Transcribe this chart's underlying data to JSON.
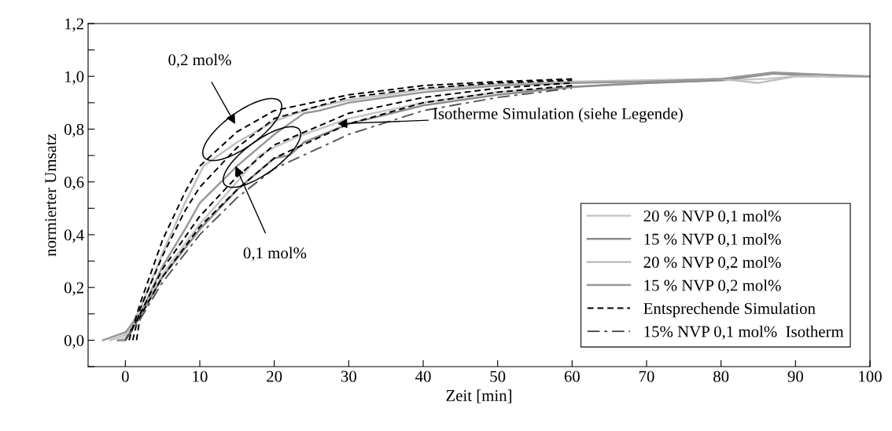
{
  "chart_data": {
    "type": "line",
    "xlabel": "Zeit [min]",
    "ylabel": "normierter Umsatz",
    "xlim": [
      -5,
      100
    ],
    "ylim": [
      -0.1,
      1.2
    ],
    "xticks": [
      0,
      10,
      20,
      30,
      40,
      50,
      60,
      70,
      80,
      90,
      100
    ],
    "yticks": [
      {
        "value": -0.1,
        "label": null
      },
      {
        "value": 0,
        "label": "0,0"
      },
      {
        "value": 0.1,
        "label": null
      },
      {
        "value": 0.2,
        "label": "0,2"
      },
      {
        "value": 0.3,
        "label": null
      },
      {
        "value": 0.4,
        "label": "0,4"
      },
      {
        "value": 0.5,
        "label": null
      },
      {
        "value": 0.6,
        "label": "0,6"
      },
      {
        "value": 0.7,
        "label": null
      },
      {
        "value": 0.8,
        "label": "0,8"
      },
      {
        "value": 0.9,
        "label": null
      },
      {
        "value": 1.0,
        "label": "1,0"
      },
      {
        "value": 1.1,
        "label": null
      },
      {
        "value": 1.2,
        "label": "1,2"
      }
    ],
    "grid": false,
    "legend": "lower right",
    "marker": "none",
    "series": [
      {
        "name": "20 % NVP 0,1 mol%",
        "color": "#c8c8c8",
        "line_style": "solid",
        "x": [
          -1,
          0,
          2,
          5,
          10,
          15,
          18,
          20,
          23,
          30,
          40,
          50,
          60,
          70,
          80,
          86,
          90,
          100
        ],
        "values": [
          0,
          0.01,
          0.1,
          0.25,
          0.44,
          0.6,
          0.7,
          0.73,
          0.77,
          0.84,
          0.9,
          0.94,
          0.96,
          0.975,
          0.985,
          0.99,
          1.0,
          1.0
        ]
      },
      {
        "name": "15 % NVP 0,1 mol%",
        "color": "#8c8c8c",
        "line_style": "solid",
        "x": [
          -1,
          0,
          2,
          5,
          10,
          15,
          20,
          22,
          24,
          30,
          40,
          50,
          60,
          70,
          80,
          87,
          95,
          100
        ],
        "values": [
          0,
          0.0,
          0.09,
          0.24,
          0.42,
          0.57,
          0.69,
          0.7,
          0.75,
          0.82,
          0.89,
          0.93,
          0.96,
          0.975,
          0.985,
          1.01,
          1.0,
          1.0
        ]
      },
      {
        "name": "20 % NVP 0,2 mol%",
        "color": "#c0c0c0",
        "line_style": "solid",
        "x": [
          -2,
          0,
          2,
          5,
          8,
          10.5,
          15,
          20,
          25,
          30,
          40,
          50,
          60,
          70,
          80,
          85,
          90,
          100
        ],
        "values": [
          0,
          0.02,
          0.12,
          0.33,
          0.52,
          0.66,
          0.75,
          0.83,
          0.88,
          0.91,
          0.95,
          0.97,
          0.98,
          0.985,
          0.99,
          0.975,
          1.0,
          1.0
        ]
      },
      {
        "name": "15 % NVP 0,2 mol%",
        "color": "#999999",
        "line_style": "solid",
        "x": [
          -3,
          0,
          2,
          5,
          8,
          10,
          15,
          20,
          24,
          26,
          30,
          40,
          50,
          60,
          70,
          80,
          87,
          95,
          100
        ],
        "values": [
          0,
          0.03,
          0.1,
          0.28,
          0.42,
          0.52,
          0.66,
          0.78,
          0.86,
          0.87,
          0.9,
          0.94,
          0.965,
          0.975,
          0.98,
          0.99,
          1.015,
          1.005,
          1.0
        ]
      },
      {
        "name": "Entsprechende Simulation",
        "color": "#000000",
        "line_style": "dashed",
        "x": [
          0.5,
          2,
          5,
          8,
          10,
          15,
          20,
          30,
          40,
          50,
          60
        ],
        "values": [
          0,
          0.14,
          0.38,
          0.56,
          0.66,
          0.79,
          0.87,
          0.93,
          0.965,
          0.98,
          0.99
        ]
      },
      {
        "color": "#000000",
        "line_style": "dashed",
        "x": [
          1,
          2,
          5,
          8,
          10,
          15,
          20,
          30,
          40,
          50,
          60
        ],
        "values": [
          0,
          0.12,
          0.32,
          0.49,
          0.58,
          0.73,
          0.84,
          0.92,
          0.955,
          0.975,
          0.985
        ]
      },
      {
        "color": "#000000",
        "line_style": "dashed",
        "x": [
          0,
          2,
          5,
          10,
          15,
          20,
          30,
          40,
          50,
          60
        ],
        "values": [
          0,
          0.1,
          0.27,
          0.47,
          0.62,
          0.74,
          0.86,
          0.92,
          0.955,
          0.975
        ]
      },
      {
        "color": "#000000",
        "line_style": "dashed",
        "x": [
          1.5,
          2,
          5,
          10,
          15,
          20,
          30,
          40,
          50,
          60
        ],
        "values": [
          0,
          0.09,
          0.24,
          0.43,
          0.57,
          0.69,
          0.82,
          0.9,
          0.94,
          0.965
        ]
      },
      {
        "name": "15% NVP 0,1 mol%  Isotherm",
        "color": "#555555",
        "line_style": "dashdot",
        "x": [
          0,
          2,
          5,
          10,
          15,
          20,
          30,
          40,
          50,
          60
        ],
        "values": [
          0,
          0.08,
          0.22,
          0.4,
          0.54,
          0.65,
          0.78,
          0.87,
          0.92,
          0.955
        ]
      }
    ],
    "annotations": [
      "0,2 mol%",
      {
        "text": "0,1 mol%",
        "x": 14.8,
        "y": 0.66
      },
      {
        "text": "Isotherme Simulation (siehe Legende)",
        "x": 28.5,
        "y": 0.82
      }
    ]
  }
}
